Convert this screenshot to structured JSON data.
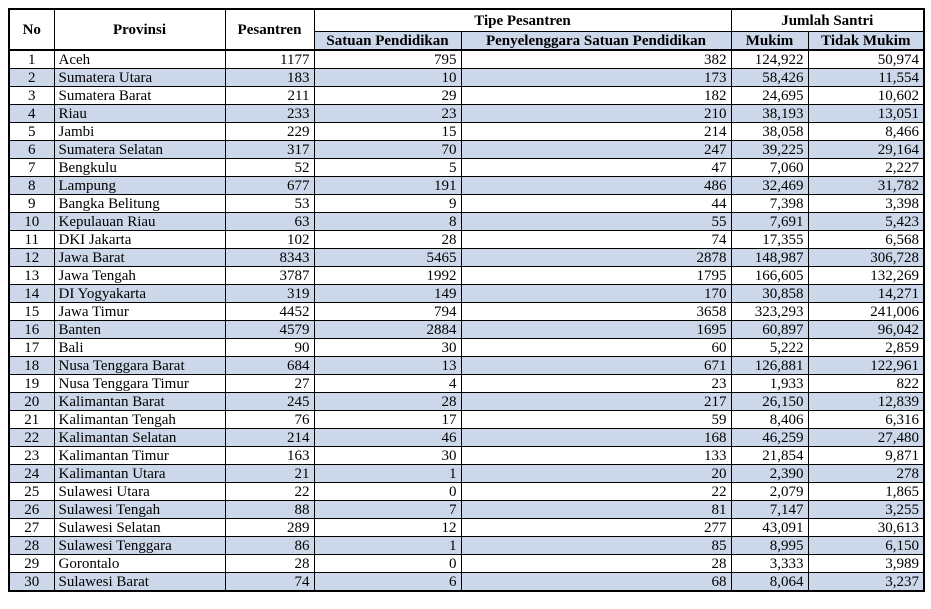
{
  "colors": {
    "band": "#ccd8ea",
    "border": "#000000",
    "background": "#ffffff",
    "text": "#000000"
  },
  "table": {
    "header": {
      "no": "No",
      "provinsi": "Provinsi",
      "pesantren": "Pesantren",
      "tipe_pesantren": "Tipe Pesantren",
      "jumlah_santri": "Jumlah Santri",
      "satuan_pendidikan": "Satuan Pendidikan",
      "penyelenggara_satuan_pendidikan": "Penyelenggara Satuan Pendidikan",
      "mukim": "Mukim",
      "tidak_mukim": "Tidak Mukim"
    },
    "rows": [
      [
        "1",
        "Aceh",
        "1177",
        "795",
        "382",
        "124,922",
        "50,974"
      ],
      [
        "2",
        "Sumatera Utara",
        "183",
        "10",
        "173",
        "58,426",
        "11,554"
      ],
      [
        "3",
        "Sumatera Barat",
        "211",
        "29",
        "182",
        "24,695",
        "10,602"
      ],
      [
        "4",
        "Riau",
        "233",
        "23",
        "210",
        "38,193",
        "13,051"
      ],
      [
        "5",
        "Jambi",
        "229",
        "15",
        "214",
        "38,058",
        "8,466"
      ],
      [
        "6",
        "Sumatera Selatan",
        "317",
        "70",
        "247",
        "39,225",
        "29,164"
      ],
      [
        "7",
        "Bengkulu",
        "52",
        "5",
        "47",
        "7,060",
        "2,227"
      ],
      [
        "8",
        "Lampung",
        "677",
        "191",
        "486",
        "32,469",
        "31,782"
      ],
      [
        "9",
        "Bangka Belitung",
        "53",
        "9",
        "44",
        "7,398",
        "3,398"
      ],
      [
        "10",
        "Kepulauan Riau",
        "63",
        "8",
        "55",
        "7,691",
        "5,423"
      ],
      [
        "11",
        "DKI Jakarta",
        "102",
        "28",
        "74",
        "17,355",
        "6,568"
      ],
      [
        "12",
        "Jawa Barat",
        "8343",
        "5465",
        "2878",
        "148,987",
        "306,728"
      ],
      [
        "13",
        "Jawa Tengah",
        "3787",
        "1992",
        "1795",
        "166,605",
        "132,269"
      ],
      [
        "14",
        "DI Yogyakarta",
        "319",
        "149",
        "170",
        "30,858",
        "14,271"
      ],
      [
        "15",
        "Jawa Timur",
        "4452",
        "794",
        "3658",
        "323,293",
        "241,006"
      ],
      [
        "16",
        "Banten",
        "4579",
        "2884",
        "1695",
        "60,897",
        "96,042"
      ],
      [
        "17",
        "Bali",
        "90",
        "30",
        "60",
        "5,222",
        "2,859"
      ],
      [
        "18",
        "Nusa Tenggara Barat",
        "684",
        "13",
        "671",
        "126,881",
        "122,961"
      ],
      [
        "19",
        "Nusa Tenggara Timur",
        "27",
        "4",
        "23",
        "1,933",
        "822"
      ],
      [
        "20",
        "Kalimantan Barat",
        "245",
        "28",
        "217",
        "26,150",
        "12,839"
      ],
      [
        "21",
        "Kalimantan Tengah",
        "76",
        "17",
        "59",
        "8,406",
        "6,316"
      ],
      [
        "22",
        "Kalimantan Selatan",
        "214",
        "46",
        "168",
        "46,259",
        "27,480"
      ],
      [
        "23",
        "Kalimantan Timur",
        "163",
        "30",
        "133",
        "21,854",
        "9,871"
      ],
      [
        "24",
        "Kalimantan Utara",
        "21",
        "1",
        "20",
        "2,390",
        "278"
      ],
      [
        "25",
        "Sulawesi Utara",
        "22",
        "0",
        "22",
        "2,079",
        "1,865"
      ],
      [
        "26",
        "Sulawesi Tengah",
        "88",
        "7",
        "81",
        "7,147",
        "3,255"
      ],
      [
        "27",
        "Sulawesi Selatan",
        "289",
        "12",
        "277",
        "43,091",
        "30,613"
      ],
      [
        "28",
        "Sulawesi Tenggara",
        "86",
        "1",
        "85",
        "8,995",
        "6,150"
      ],
      [
        "29",
        "Gorontalo",
        "28",
        "0",
        "28",
        "3,333",
        "3,989"
      ],
      [
        "30",
        "Sulawesi Barat",
        "74",
        "6",
        "68",
        "8,064",
        "3,237"
      ]
    ]
  }
}
